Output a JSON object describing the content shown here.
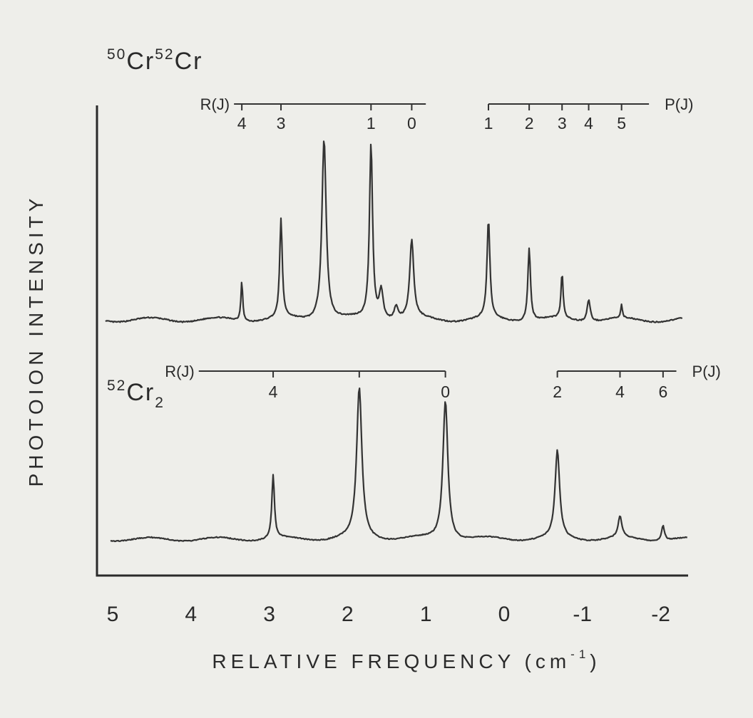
{
  "chart_data": {
    "type": "line",
    "xlabel": "RELATIVE FREQUENCY (cm",
    "xlabel_exponent": "-1",
    "xlabel_close": ")",
    "ylabel": "PHOTOION INTENSITY",
    "xlim": [
      5.2,
      -2.35
    ],
    "x_ticks": [
      {
        "value": 5,
        "label": "5"
      },
      {
        "value": 4,
        "label": "4"
      },
      {
        "value": 3,
        "label": "3"
      },
      {
        "value": 2,
        "label": "2"
      },
      {
        "value": 1,
        "label": "1"
      },
      {
        "value": 0,
        "label": "0"
      },
      {
        "value": -1,
        "label": "-1"
      },
      {
        "value": -2,
        "label": "-2"
      }
    ],
    "grid": false,
    "panels": [
      {
        "id": "top",
        "isotope": {
          "sup1": "50",
          "el1": "Cr",
          "sup2": "52",
          "el2": "Cr",
          "sub": ""
        },
        "baseline": 0.02,
        "peaks": [
          {
            "x": 3.35,
            "h": 0.22,
            "w": 0.014
          },
          {
            "x": 2.85,
            "h": 0.54,
            "w": 0.02
          },
          {
            "x": 2.3,
            "h": 1.0,
            "w": 0.033
          },
          {
            "x": 1.7,
            "h": 0.96,
            "w": 0.024
          },
          {
            "x": 1.57,
            "h": 0.16,
            "w": 0.03
          },
          {
            "x": 1.38,
            "h": 0.07,
            "w": 0.03
          },
          {
            "x": 1.18,
            "h": 0.43,
            "w": 0.03
          },
          {
            "x": 0.2,
            "h": 0.54,
            "w": 0.022
          },
          {
            "x": -0.32,
            "h": 0.4,
            "w": 0.02
          },
          {
            "x": -0.74,
            "h": 0.25,
            "w": 0.016
          },
          {
            "x": -1.08,
            "h": 0.12,
            "w": 0.025
          },
          {
            "x": -1.5,
            "h": 0.07,
            "w": 0.012
          }
        ],
        "branches": [
          {
            "name": "R(J)",
            "label_side": "left",
            "x_start": 3.45,
            "x_end": 1.0,
            "lines": [
              {
                "j": "4",
                "x": 3.35
              },
              {
                "j": "3",
                "x": 2.85
              },
              {
                "j": "1",
                "x": 1.7
              },
              {
                "j": "0",
                "x": 1.18
              }
            ]
          },
          {
            "name": "P(J)",
            "label_side": "right",
            "x_start": 0.2,
            "x_end": -1.85,
            "lines": [
              {
                "j": "1",
                "x": 0.2
              },
              {
                "j": "2",
                "x": -0.32
              },
              {
                "j": "3",
                "x": -0.74
              },
              {
                "j": "4",
                "x": -1.08
              },
              {
                "j": "5",
                "x": -1.5
              }
            ]
          }
        ]
      },
      {
        "id": "bottom",
        "isotope": {
          "sup1": "52",
          "el1": "Cr",
          "sup2": "",
          "el2": "",
          "sub": "2"
        },
        "baseline": 0.02,
        "peaks": [
          {
            "x": 2.95,
            "h": 0.42,
            "w": 0.02
          },
          {
            "x": 1.85,
            "h": 1.0,
            "w": 0.04
          },
          {
            "x": 0.75,
            "h": 0.93,
            "w": 0.038
          },
          {
            "x": -0.68,
            "h": 0.58,
            "w": 0.035
          },
          {
            "x": -1.48,
            "h": 0.14,
            "w": 0.03
          },
          {
            "x": -2.03,
            "h": 0.1,
            "w": 0.022
          }
        ],
        "branches": [
          {
            "name": "R(J)",
            "label_side": "left",
            "x_start": 3.9,
            "x_end": 0.75,
            "lines": [
              {
                "j": "4",
                "x": 2.95
              },
              {
                "j": "",
                "x": 1.85
              },
              {
                "j": "0",
                "x": 0.75
              }
            ]
          },
          {
            "name": "P(J)",
            "label_side": "right",
            "x_start": -0.68,
            "x_end": -2.2,
            "lines": [
              {
                "j": "2",
                "x": -0.68
              },
              {
                "j": "4",
                "x": -1.48
              },
              {
                "j": "6",
                "x": -2.03
              }
            ]
          }
        ]
      }
    ]
  }
}
